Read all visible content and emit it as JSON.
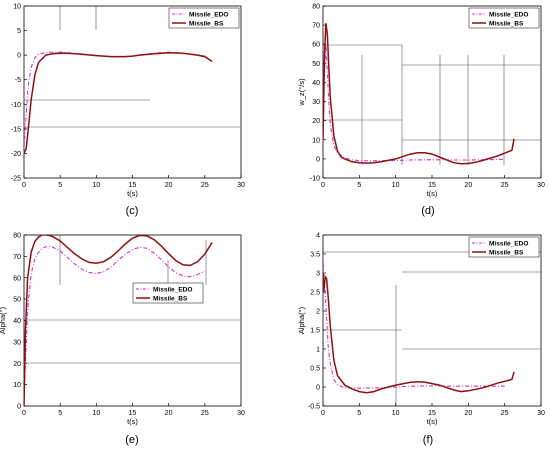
{
  "figure": {
    "panel_letters": [
      "(c)",
      "(d)",
      "(e)",
      "(f)"
    ]
  },
  "colors": {
    "edo": "#cc33cc",
    "bs": "#8b1010",
    "frame": "#000000",
    "guide": "#555555"
  },
  "chart_data": [
    {
      "id": "c",
      "type": "line",
      "label": "(c)",
      "xlabel": "t(s)",
      "ylabel": "",
      "xlim": [
        0,
        30
      ],
      "ylim": [
        -25,
        10
      ],
      "xticks": [
        "0",
        "5",
        "10",
        "15",
        "20",
        "25",
        "30"
      ],
      "yticks": [
        "-25",
        "-20",
        "-15",
        "-10",
        "-5",
        "0",
        "5",
        "10"
      ],
      "legend": "top-right",
      "series": [
        {
          "name": "Missile_EDO",
          "style": "dashdot",
          "x": [
            0,
            0.3,
            0.6,
            1,
            1.5,
            2,
            3,
            4,
            5,
            6,
            8,
            10,
            12,
            14,
            15,
            16,
            18,
            20,
            22,
            24,
            25
          ],
          "y": [
            -19,
            -12,
            -6,
            -2.5,
            -0.5,
            0.2,
            0.5,
            0.6,
            0.6,
            0.5,
            0.2,
            -0.1,
            -0.3,
            -0.3,
            -0.2,
            0,
            0.4,
            0.6,
            0.4,
            0,
            -0.2
          ]
        },
        {
          "name": "Missile_BS",
          "style": "solid",
          "x": [
            0,
            0.3,
            0.6,
            1,
            1.5,
            2,
            3,
            4,
            5,
            6,
            8,
            10,
            12,
            14,
            15,
            16,
            18,
            20,
            22,
            24,
            25,
            26
          ],
          "y": [
            -20,
            -19,
            -15,
            -9,
            -4,
            -1.5,
            0,
            0.3,
            0.4,
            0.4,
            0.2,
            -0.1,
            -0.3,
            -0.3,
            -0.2,
            0,
            0.3,
            0.5,
            0.4,
            0,
            -0.3,
            -1.3
          ]
        }
      ]
    },
    {
      "id": "d",
      "type": "line",
      "label": "(d)",
      "xlabel": "t(s)",
      "ylabel": "w_z(°/s)",
      "xlim": [
        0,
        30
      ],
      "ylim": [
        -10,
        80
      ],
      "xticks": [
        "0",
        "5",
        "10",
        "15",
        "20",
        "25",
        "30"
      ],
      "yticks": [
        "-10",
        "0",
        "10",
        "20",
        "30",
        "40",
        "50",
        "60",
        "70",
        "80"
      ],
      "legend": "top-right",
      "series": [
        {
          "name": "Missile_EDO",
          "style": "dashdot",
          "x": [
            0,
            0.2,
            0.4,
            0.6,
            0.8,
            1,
            1.5,
            2,
            3,
            4,
            5,
            6,
            8,
            10,
            12,
            14,
            16,
            18,
            20,
            22,
            24,
            25
          ],
          "y": [
            10,
            45,
            60,
            45,
            30,
            18,
            7,
            3,
            0.5,
            -0.5,
            -1,
            -1,
            -1,
            -0.8,
            -0.6,
            -0.5,
            -0.5,
            -0.6,
            -0.6,
            -0.5,
            -0.3,
            -0.2
          ]
        },
        {
          "name": "Missile_BS",
          "style": "solid",
          "x": [
            0,
            0.2,
            0.4,
            0.6,
            0.8,
            1,
            1.5,
            2,
            2.5,
            3,
            4,
            5,
            6,
            7,
            8,
            10,
            12,
            13,
            14,
            15,
            16,
            18,
            19,
            20,
            21,
            22,
            24,
            25,
            26,
            26.3
          ],
          "y": [
            10,
            55,
            71,
            65,
            48,
            32,
            12,
            4,
            1,
            0,
            -1.5,
            -2,
            -2.2,
            -2,
            -1.5,
            0,
            2.5,
            3.2,
            3.2,
            2.5,
            1,
            -2,
            -2.5,
            -2.4,
            -1.8,
            -0.8,
            1.5,
            3,
            4.5,
            10.5
          ]
        }
      ]
    },
    {
      "id": "e",
      "type": "line",
      "label": "(e)",
      "xlabel": "t(s)",
      "ylabel": "Alpha(°)",
      "xlim": [
        0,
        30
      ],
      "ylim": [
        0,
        80
      ],
      "xticks": [
        "0",
        "5",
        "10",
        "15",
        "20",
        "25",
        "30"
      ],
      "yticks": [
        "0",
        "10",
        "20",
        "30",
        "40",
        "50",
        "60",
        "70",
        "80"
      ],
      "legend": "lower-right",
      "series": [
        {
          "name": "Missile_EDO",
          "style": "dashdot",
          "x": [
            0,
            0.2,
            0.5,
            1,
            1.5,
            2,
            2.5,
            3,
            3.5,
            4,
            5,
            6,
            7,
            8,
            9,
            10,
            11,
            12,
            13,
            14,
            15,
            16,
            17,
            18,
            19,
            20,
            21,
            22,
            23,
            24,
            25
          ],
          "y": [
            0,
            20,
            45,
            62,
            69,
            72,
            73.8,
            74.5,
            74.6,
            74.3,
            72.5,
            69.5,
            66.5,
            64,
            62.5,
            62,
            62.8,
            65,
            68,
            71,
            73.2,
            74.3,
            73.8,
            71.5,
            68.5,
            65,
            62.3,
            60.8,
            60.5,
            61.5,
            63
          ]
        },
        {
          "name": "Missile_BS",
          "style": "solid",
          "x": [
            0,
            0.2,
            0.5,
            1,
            1.5,
            2,
            2.5,
            3,
            3.5,
            4,
            5,
            6,
            7,
            8,
            9,
            10,
            11,
            12,
            13,
            14,
            15,
            16,
            17,
            18,
            19,
            20,
            21,
            22,
            23,
            24,
            25,
            26
          ],
          "y": [
            0,
            35,
            60,
            72,
            77,
            79,
            80,
            80,
            79.8,
            79.2,
            77.2,
            74.2,
            71.2,
            68.8,
            67.2,
            66.8,
            67.5,
            69.5,
            72.5,
            75.8,
            78.5,
            79.8,
            79.6,
            77.8,
            74.8,
            71.2,
            68,
            66,
            65.8,
            67.5,
            71,
            76.5
          ]
        }
      ]
    },
    {
      "id": "f",
      "type": "line",
      "label": "(f)",
      "xlabel": "t(s)",
      "ylabel": "Alpha(°)",
      "xlim": [
        0,
        30
      ],
      "ylim": [
        -0.5,
        4
      ],
      "xticks": [
        "0",
        "5",
        "10",
        "15",
        "20",
        "25",
        "30"
      ],
      "yticks": [
        "-0.5",
        "0",
        "0.5",
        "1",
        "1.5",
        "2",
        "2.5",
        "3",
        "3.5",
        "4"
      ],
      "legend": "top-right",
      "series": [
        {
          "name": "Missile_EDO",
          "style": "dashdot",
          "x": [
            0,
            0.1,
            0.3,
            0.5,
            0.7,
            1,
            1.5,
            2,
            3,
            4,
            5,
            6,
            8,
            10,
            12,
            14,
            16,
            18,
            20,
            22,
            24,
            25
          ],
          "y": [
            3.5,
            3.0,
            2.5,
            1.8,
            1.1,
            0.6,
            0.2,
            0.05,
            -0.02,
            -0.03,
            -0.03,
            -0.03,
            -0.02,
            0,
            0.02,
            0.03,
            0.03,
            0.02,
            0.02,
            0.02,
            0.02,
            0.02
          ]
        },
        {
          "name": "Missile_BS",
          "style": "solid",
          "x": [
            0,
            0.1,
            0.3,
            0.5,
            0.7,
            1,
            1.5,
            2,
            3,
            4,
            5,
            6,
            7,
            8,
            10,
            12,
            13,
            14,
            16,
            18,
            19,
            20,
            22,
            24,
            25,
            26,
            26.3
          ],
          "y": [
            3.0,
            2.5,
            2.9,
            2.85,
            2.4,
            1.6,
            0.7,
            0.3,
            0.05,
            -0.05,
            -0.12,
            -0.15,
            -0.12,
            -0.05,
            0.05,
            0.12,
            0.14,
            0.13,
            0.05,
            -0.08,
            -0.12,
            -0.1,
            -0.02,
            0.1,
            0.15,
            0.2,
            0.4
          ]
        }
      ]
    }
  ]
}
